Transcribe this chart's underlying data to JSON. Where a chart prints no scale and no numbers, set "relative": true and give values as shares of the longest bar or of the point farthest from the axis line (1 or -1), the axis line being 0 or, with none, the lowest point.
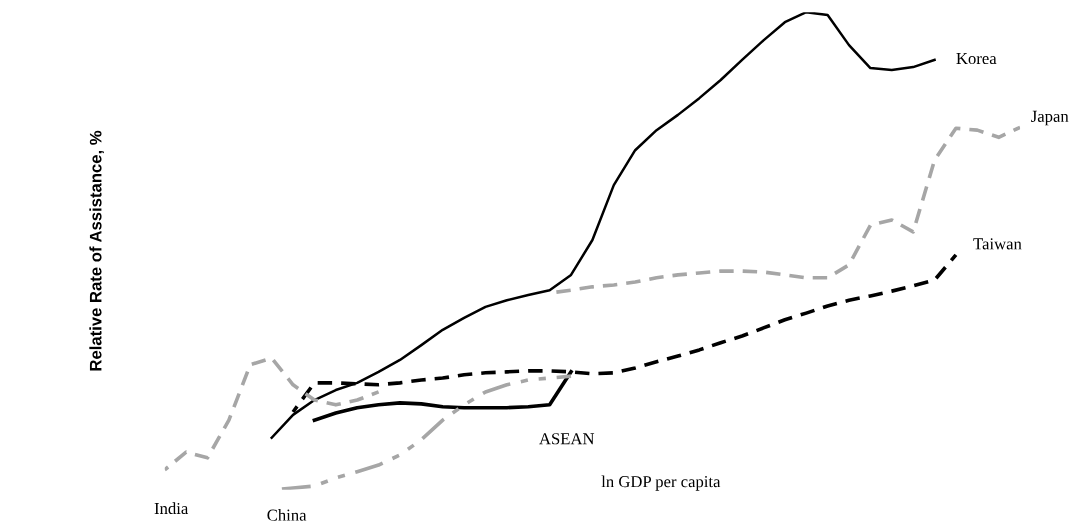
{
  "chart_data": {
    "type": "line",
    "relative": true,
    "xlabel": "ln GDP per capita",
    "ylabel": "Relative Rate of Assistance, %",
    "legend": false,
    "tick_labels": false,
    "categories": [
      null,
      null,
      null,
      null,
      null,
      null,
      null,
      null,
      null,
      null,
      null,
      null,
      null,
      null,
      null,
      null,
      null,
      null,
      null,
      null,
      null,
      null,
      null,
      null,
      null,
      null,
      null,
      null,
      null,
      null,
      null,
      null,
      null,
      null,
      null,
      null,
      null,
      null,
      null,
      null,
      null
    ],
    "series": [
      {
        "name": "Korea",
        "color": "#000000",
        "line_style": "solid",
        "values": [
          null,
          null,
          null,
          null,
          null,
          0.109,
          0.157,
          0.188,
          0.209,
          0.224,
          0.247,
          0.272,
          0.303,
          0.335,
          0.36,
          0.383,
          0.397,
          0.408,
          0.418,
          0.45,
          0.523,
          0.638,
          0.711,
          0.753,
          0.785,
          0.82,
          0.858,
          0.9,
          0.941,
          0.979,
          1.0,
          0.994,
          0.931,
          0.883,
          0.879,
          0.885,
          0.9,
          null,
          null,
          null,
          null
        ]
      },
      {
        "name": "Japan",
        "color": "#a6a6a6",
        "line_style": "dashed",
        "values": [
          null,
          null,
          null,
          null,
          null,
          null,
          null,
          null,
          null,
          null,
          null,
          null,
          null,
          null,
          null,
          null,
          null,
          null,
          0.412,
          0.418,
          0.425,
          0.429,
          0.435,
          0.444,
          0.45,
          0.454,
          0.458,
          0.458,
          0.456,
          0.45,
          0.444,
          0.444,
          0.471,
          0.554,
          0.565,
          0.54,
          0.69,
          0.757,
          0.753,
          0.738,
          0.759
        ]
      },
      {
        "name": "Taiwan",
        "color": "#000000",
        "line_style": "dashed",
        "values": [
          null,
          null,
          null,
          null,
          null,
          null,
          0.163,
          0.224,
          0.224,
          0.222,
          0.22,
          0.224,
          0.23,
          0.234,
          0.241,
          0.245,
          0.247,
          0.249,
          0.249,
          0.247,
          0.243,
          0.245,
          0.255,
          0.268,
          0.28,
          0.293,
          0.308,
          0.322,
          0.339,
          0.356,
          0.37,
          0.385,
          0.397,
          0.406,
          0.416,
          0.427,
          0.439,
          0.492,
          null,
          null,
          null
        ]
      },
      {
        "name": "India",
        "color": "#a6a6a6",
        "line_style": "dashed",
        "values": [
          0.042,
          0.079,
          0.067,
          0.146,
          0.262,
          0.276,
          0.22,
          0.188,
          0.178,
          0.188,
          0.205,
          null,
          null,
          null,
          null,
          null,
          null,
          null,
          null,
          null,
          null,
          null,
          null,
          null,
          null,
          null,
          null,
          null,
          null,
          null,
          null,
          null,
          null,
          null,
          null,
          null,
          null,
          null,
          null,
          null,
          null
        ]
      },
      {
        "name": "ASEAN",
        "color": "#000000",
        "line_style": "solid",
        "values": [
          null,
          null,
          null,
          null,
          null,
          null,
          null,
          0.146,
          0.161,
          0.172,
          0.178,
          0.182,
          0.18,
          0.174,
          0.172,
          0.172,
          0.172,
          0.174,
          0.178,
          0.247,
          null,
          null,
          null,
          null,
          null,
          null,
          null,
          null,
          null,
          null,
          null,
          null,
          null,
          null,
          null,
          null,
          null,
          null,
          null,
          null,
          null
        ]
      },
      {
        "name": "China",
        "color": "#a6a6a6",
        "line_style": "dashdot",
        "values": [
          null,
          null,
          null,
          null,
          null,
          0.0,
          0.004,
          0.008,
          0.025,
          0.038,
          0.052,
          0.073,
          0.105,
          0.146,
          0.178,
          0.205,
          0.22,
          0.23,
          0.234,
          0.238,
          null,
          null,
          null,
          null,
          null,
          null,
          null,
          null,
          null,
          null,
          null,
          null,
          null,
          null,
          null,
          null,
          null,
          null,
          null,
          null,
          null
        ]
      }
    ]
  }
}
